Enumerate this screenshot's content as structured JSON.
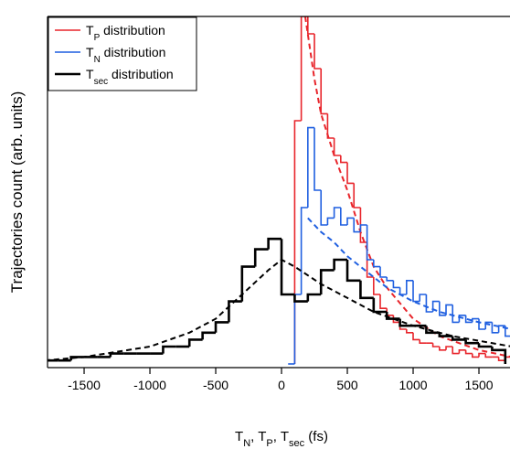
{
  "chart_data": {
    "type": "histogram",
    "y_label": "Trajectories count (arb. units)",
    "x_label": [
      "T",
      "N",
      ", T",
      "P",
      ", T",
      "sec",
      " (fs)"
    ],
    "xlim": [
      -1778,
      1736
    ],
    "ylim": [
      0,
      100
    ],
    "xticks": [
      -1500,
      -1000,
      -500,
      0,
      500,
      1000,
      1500
    ],
    "series": [
      {
        "name": [
          "T",
          "P",
          " distribution"
        ],
        "color": "#e8252b",
        "bins": [
          100,
          150,
          200,
          250,
          300,
          350,
          400,
          450,
          500,
          550,
          600,
          650,
          700,
          750,
          800,
          850,
          900,
          950,
          1000,
          1050,
          1100,
          1150,
          1200,
          1250,
          1300,
          1350,
          1400,
          1450,
          1500,
          1550,
          1600,
          1650,
          1700,
          1750
        ],
        "values": [
          70,
          100,
          95,
          85,
          72,
          65,
          60,
          58,
          52,
          45,
          35,
          25,
          20,
          16,
          14,
          12,
          10,
          9,
          7,
          6,
          6,
          5,
          4,
          5,
          3,
          4,
          3,
          2,
          3,
          2,
          2,
          1,
          2
        ],
        "fit_x": [
          180,
          250,
          300,
          400,
          500,
          600,
          700,
          800,
          1000,
          1200,
          1500,
          1750
        ],
        "fit_y": [
          100,
          82,
          72,
          60,
          50,
          38,
          28,
          22,
          13,
          8,
          4,
          2
        ]
      },
      {
        "name": [
          "T",
          "N",
          " distribution"
        ],
        "color": "#1f5fe0",
        "bins": [
          50,
          100,
          150,
          200,
          250,
          300,
          350,
          400,
          450,
          500,
          550,
          600,
          650,
          700,
          750,
          800,
          850,
          900,
          950,
          1000,
          1050,
          1100,
          1150,
          1200,
          1250,
          1300,
          1350,
          1400,
          1450,
          1500,
          1550,
          1600,
          1650,
          1700,
          1750
        ],
        "values": [
          0,
          20,
          45,
          68,
          50,
          40,
          42,
          45,
          40,
          42,
          38,
          40,
          30,
          28,
          25,
          24,
          22,
          20,
          24,
          18,
          20,
          15,
          18,
          14,
          17,
          12,
          14,
          12,
          13,
          10,
          12,
          9,
          11,
          8
        ],
        "fit_x": [
          200,
          300,
          400,
          500,
          600,
          800,
          1000,
          1200,
          1500,
          1750
        ],
        "fit_y": [
          42,
          38,
          35,
          31,
          28,
          22,
          18,
          15,
          12,
          10
        ]
      },
      {
        "name": [
          "T",
          "sec",
          " distribution"
        ],
        "color": "#000000",
        "bins": [
          -1800,
          -1700,
          -1600,
          -1500,
          -1400,
          -1300,
          -1200,
          -1100,
          -1000,
          -900,
          -800,
          -700,
          -600,
          -500,
          -400,
          -300,
          -200,
          -100,
          0,
          100,
          200,
          300,
          400,
          500,
          600,
          700,
          800,
          900,
          1000,
          1100,
          1200,
          1300,
          1400,
          1500,
          1600,
          1700
        ],
        "values": [
          1,
          1,
          2,
          2,
          2,
          3,
          3,
          3,
          3,
          5,
          5,
          7,
          9,
          12,
          18,
          28,
          33,
          36,
          20,
          18,
          20,
          27,
          30,
          24,
          19,
          15,
          13,
          11,
          11,
          9,
          8,
          7,
          6,
          5,
          4
        ],
        "fit_x": [
          -1800,
          -1500,
          -1000,
          -700,
          -500,
          -300,
          -100,
          0,
          100,
          300,
          500,
          700,
          1000,
          1300,
          1750
        ],
        "fit_y": [
          1,
          2,
          5,
          9,
          13,
          20,
          27,
          30,
          28,
          23,
          19,
          15,
          11,
          8,
          5
        ]
      }
    ]
  }
}
